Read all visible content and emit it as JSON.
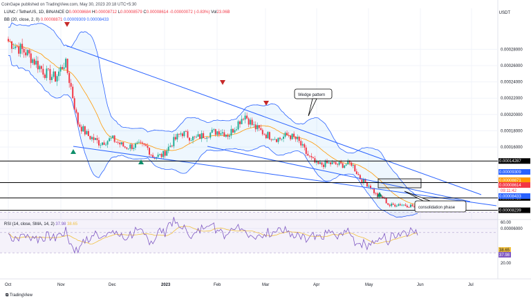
{
  "header": {
    "published": "CoinGape published on TradingView.com, May 30, 2023 20:18 UTC+5:30"
  },
  "legend": {
    "symbol": "LUNC / TetherUS, 1D, BINANCE",
    "o": "0.00008684",
    "h": "0.00008712",
    "l": "0.00008579",
    "c": "0.00008614",
    "change": "-0.00000072 (-0.83%)",
    "vol": "23.06B",
    "bb_label": "BB (20, close, 2, 0)",
    "bb_basis": "0.00008871",
    "bb_upper": "0.00009309",
    "bb_lower": "0.00008433"
  },
  "rsi_legend": {
    "label": "RSI (14, close, SMA, 14, 2)",
    "rsi": "37.98",
    "sma": "38.65"
  },
  "axis": {
    "currency": "USDT",
    "price_ticks": [
      "0.00028000",
      "0.00026000",
      "0.00024000",
      "0.00022000",
      "0.00020000",
      "0.00018000",
      "0.00016000",
      "0.00006000"
    ],
    "rsi_ticks": [
      "60.00",
      "20.00"
    ],
    "x_labels": [
      "Oct",
      "Nov",
      "Dec",
      "2023",
      "Feb",
      "Mar",
      "Apr",
      "May",
      "Jun",
      "Jul"
    ]
  },
  "annotations": {
    "wedge": "Wedge pattern",
    "consolidation": "consolidation phase"
  },
  "footer": {
    "brand": "TradingView"
  },
  "colors": {
    "up": "#22ab94",
    "down": "#f23645",
    "bb": "#2962ff",
    "basis": "#ff9800",
    "trendline": "#2962ff",
    "rsi": "#7e57c2",
    "rsi_sma": "#f0c040"
  },
  "chart_data": {
    "type": "candlestick",
    "title": "LUNC / TetherUS, 1D, BINANCE",
    "y_range": [
      6e-05,
      0.0003
    ],
    "levels": [
      {
        "value": 0.00014287,
        "label": "0.00014287",
        "style": "hline"
      },
      {
        "value": 0.00011633,
        "label": "0.00011633",
        "style": "hline"
      },
      {
        "value": 9.75e-05,
        "label": "0.00009750",
        "style": "hline"
      },
      {
        "value": 8.239e-05,
        "label": "0.00008239",
        "style": "hline"
      }
    ],
    "price_badges": [
      {
        "value": 9.309e-05,
        "label": "0.00009309",
        "color": "#2962ff"
      },
      {
        "value": 8.871e-05,
        "label": "0.00008871",
        "color": "#ff9800"
      },
      {
        "value": 8.614e-05,
        "label": "0.00008614",
        "color": "#f23645"
      },
      {
        "value": 8.433e-05,
        "label": "0.00008433",
        "color": "#2962ff"
      }
    ],
    "countdown": "09:11:42",
    "rsi_badges": [
      {
        "value": 38.65,
        "label": "38.65",
        "color": "#f0c040"
      },
      {
        "value": 37.98,
        "label": "37.98",
        "color": "#7e57c2"
      }
    ],
    "rsi_range": [
      10,
      75
    ],
    "rsi_bands": [
      70,
      30
    ],
    "grid": true
  }
}
